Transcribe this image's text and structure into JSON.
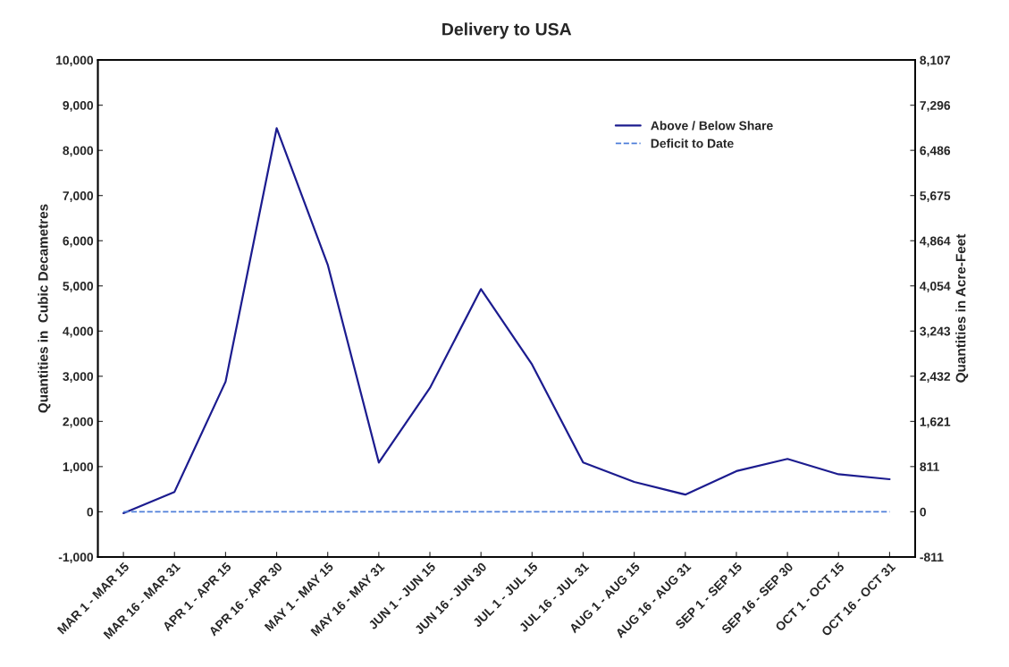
{
  "chart_data": {
    "type": "line",
    "title": "Delivery to USA",
    "ylabel": "Quantities in  Cubic Decametres",
    "y2label": "Quantities in Acre-Feet",
    "categories": [
      "MAR 1 - MAR 15",
      "MAR 16 - MAR 31",
      "APR 1 - APR 15",
      "APR 16 - APR 30",
      "MAY 1 - MAY 15",
      "MAY 16 - MAY 31",
      "JUN 1 - JUN 15",
      "JUN 16 - JUN 30",
      "JUL 1 - JUL 15",
      "JUL 16 - JUL 31",
      "AUG 1 - AUG 15",
      "AUG 16 - AUG 31",
      "SEP 1 - SEP 15",
      "SEP 16 - SEP 30",
      "OCT 1 - OCT 15",
      "OCT 16 - OCT 31"
    ],
    "series": [
      {
        "name": "Above / Below Share",
        "color": "#1c1c8f",
        "line_style": "solid",
        "values": [
          -30,
          440,
          2880,
          8490,
          5470,
          1090,
          2740,
          4930,
          3260,
          1090,
          660,
          380,
          900,
          1170,
          830,
          720
        ]
      },
      {
        "name": "Deficit to Date",
        "color": "#4f7fd9",
        "line_style": "dashed",
        "values": [
          0,
          0,
          0,
          0,
          0,
          0,
          0,
          0,
          0,
          0,
          0,
          0,
          0,
          0,
          0,
          0
        ]
      }
    ],
    "ylim": [
      -1000,
      10000
    ],
    "yticks": [
      {
        "value": -1000,
        "label": "-1,000"
      },
      0,
      {
        "value": 1000,
        "label": "1,000"
      },
      {
        "value": 2000,
        "label": "2,000"
      },
      {
        "value": 3000,
        "label": "3,000"
      },
      {
        "value": 4000,
        "label": "4,000"
      },
      {
        "value": 5000,
        "label": "5,000"
      },
      {
        "value": 6000,
        "label": "6,000"
      },
      {
        "value": 7000,
        "label": "7,000"
      },
      {
        "value": 8000,
        "label": "8,000"
      },
      {
        "value": 9000,
        "label": "9,000"
      },
      {
        "value": 10000,
        "label": "10,000"
      }
    ],
    "y2lim": [
      -811,
      8107
    ],
    "y2ticks": [
      -811,
      0,
      811,
      {
        "value": 1621,
        "label": "1,621"
      },
      {
        "value": 2432,
        "label": "2,432"
      },
      {
        "value": 3243,
        "label": "3,243"
      },
      {
        "value": 4054,
        "label": "4,054"
      },
      {
        "value": 4864,
        "label": "4,864"
      },
      {
        "value": 5675,
        "label": "5,675"
      },
      {
        "value": 6486,
        "label": "6,486"
      },
      {
        "value": 7296,
        "label": "7,296"
      },
      {
        "value": 8107,
        "label": "8,107"
      }
    ],
    "grid": false,
    "legend": "top right",
    "marker": "none"
  }
}
